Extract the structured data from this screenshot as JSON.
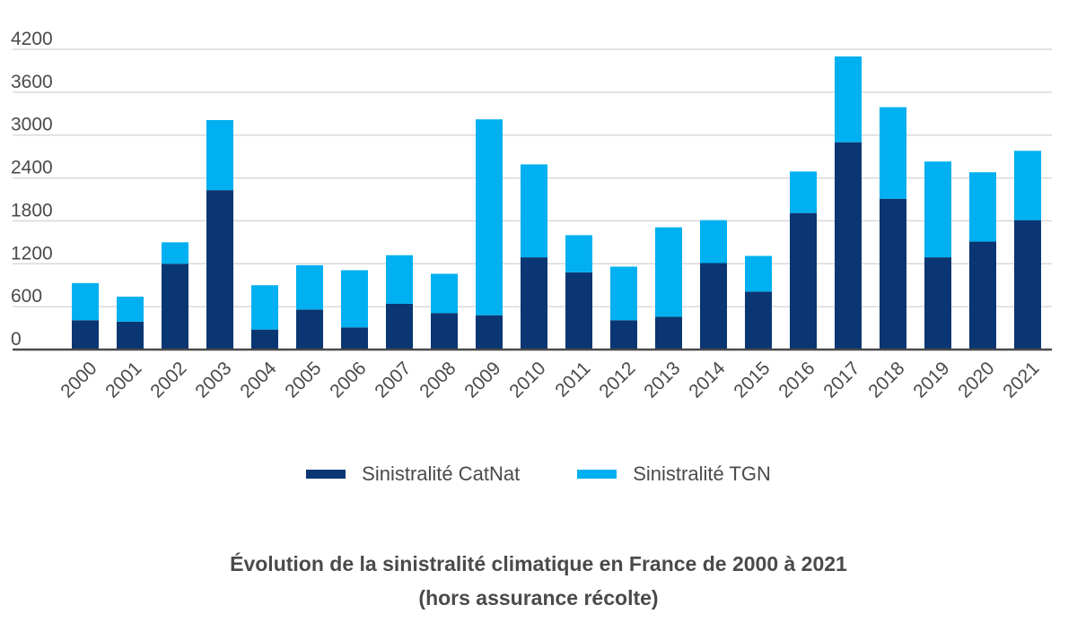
{
  "chart_data": {
    "type": "bar",
    "stacked": true,
    "categories": [
      "2000",
      "2001",
      "2002",
      "2003",
      "2004",
      "2005",
      "2006",
      "2007",
      "2008",
      "2009",
      "2010",
      "2011",
      "2012",
      "2013",
      "2014",
      "2015",
      "2016",
      "2017",
      "2018",
      "2019",
      "2020",
      "2021"
    ],
    "series": [
      {
        "name": "Sinistralité CatNat",
        "color": "#0a3673",
        "values": [
          410,
          390,
          1200,
          2230,
          280,
          560,
          310,
          640,
          510,
          480,
          1290,
          1080,
          410,
          460,
          1210,
          810,
          1910,
          2900,
          2110,
          1290,
          1510,
          1810
        ]
      },
      {
        "name": "Sinistralité TGN",
        "color": "#00b0f0",
        "values": [
          520,
          350,
          300,
          980,
          620,
          620,
          800,
          680,
          550,
          2740,
          1300,
          520,
          750,
          1250,
          600,
          500,
          580,
          1200,
          1280,
          1340,
          970,
          970
        ]
      }
    ],
    "ylim": [
      0,
      4200
    ],
    "yticks": [
      "0",
      "600",
      "1200",
      "1800",
      "2400",
      "3000",
      "3600",
      "4200"
    ],
    "grid": true,
    "legend": "bottom-center",
    "title_lines": [
      "Évolution de la sinistralité climatique en France de 2000 à 2021",
      "(hors assurance récolte)"
    ]
  }
}
